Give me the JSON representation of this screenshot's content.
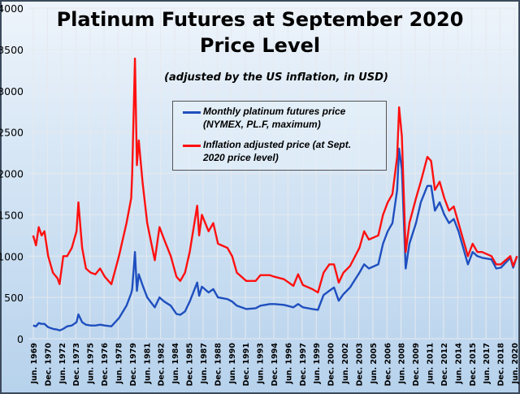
{
  "chart_data": {
    "type": "line",
    "title": "Platinum Futures at September 2020 Price Level",
    "subtitle": "(adjusted by the US inflation, in USD)",
    "xlabel": "",
    "ylabel": "",
    "ylim": [
      0,
      4000
    ],
    "yticks": [
      "0",
      "500",
      "1000",
      "1500",
      "2000",
      "2500",
      "3000",
      "3500",
      "4000"
    ],
    "xticks": [
      "Jun. 1969",
      "Dec. 1970",
      "Jun. 1972",
      "Dec. 1973",
      "Jun. 1975",
      "Dec. 1976",
      "Jun. 1978",
      "Dec. 1979",
      "Jun. 1981",
      "Dec. 1982",
      "Jun. 1984",
      "Dec. 1985",
      "Jun. 1987",
      "Dec. 1988",
      "Jun. 1990",
      "Dec. 1991",
      "Jun. 1993",
      "Dec. 1994",
      "Jun. 1996",
      "Dec. 1997",
      "Jun. 1999",
      "Dec. 2000",
      "Jun. 2002",
      "Dec. 2003",
      "Jun. 2005",
      "Dec. 2006",
      "Jun. 2008",
      "Dec. 2009",
      "Jun. 2011",
      "Dec. 2012",
      "Jun. 2014",
      "Dec. 2015",
      "Jun. 2017",
      "Dec. 2018",
      "Jun. 2020"
    ],
    "xlim": [
      1969.42,
      2020.42
    ],
    "grid": true,
    "legend_position": "top-center",
    "x": [
      1969.4,
      1969.7,
      1970.0,
      1970.3,
      1970.6,
      1971.0,
      1971.5,
      1972.0,
      1972.2,
      1972.6,
      1973.0,
      1973.5,
      1974.0,
      1974.2,
      1974.6,
      1975.0,
      1975.5,
      1976.0,
      1976.5,
      1977.0,
      1977.7,
      1978.5,
      1979.3,
      1979.8,
      1979.9,
      1980.2,
      1980.4,
      1980.6,
      1981.0,
      1981.5,
      1982.3,
      1982.8,
      1983.3,
      1984.0,
      1984.6,
      1985.0,
      1985.5,
      1986.0,
      1986.8,
      1987.0,
      1987.3,
      1988.0,
      1988.5,
      1989.0,
      1990.0,
      1990.5,
      1991.0,
      1992.0,
      1993.0,
      1993.5,
      1994.5,
      1995.0,
      1996.0,
      1997.0,
      1997.5,
      1998.0,
      1999.0,
      1999.6,
      2000.2,
      2000.8,
      2001.3,
      2001.8,
      2002.3,
      2003.0,
      2004.0,
      2004.5,
      2005.0,
      2006.0,
      2006.5,
      2007.0,
      2007.5,
      2008.0,
      2008.2,
      2008.5,
      2008.9,
      2009.3,
      2010.0,
      2010.5,
      2011.2,
      2011.6,
      2012.0,
      2012.5,
      2013.0,
      2013.5,
      2014.0,
      2014.5,
      2015.0,
      2015.5,
      2016.0,
      2016.5,
      2017.0,
      2018.0,
      2018.5,
      2019.0,
      2019.5,
      2020.0,
      2020.3,
      2020.7
    ],
    "series": [
      {
        "name": "Monthly platinum  futures price (NYMEX, PL.F, maximum)",
        "color": "#1f4fbf",
        "values": [
          160,
          150,
          190,
          180,
          180,
          140,
          120,
          110,
          100,
          120,
          150,
          160,
          200,
          295,
          200,
          170,
          160,
          160,
          170,
          160,
          150,
          250,
          400,
          550,
          600,
          1050,
          580,
          780,
          650,
          500,
          380,
          500,
          450,
          400,
          300,
          290,
          330,
          450,
          680,
          520,
          630,
          560,
          600,
          500,
          480,
          450,
          400,
          360,
          370,
          400,
          420,
          420,
          410,
          380,
          420,
          380,
          360,
          350,
          530,
          580,
          620,
          460,
          540,
          620,
          800,
          900,
          850,
          900,
          1150,
          1300,
          1400,
          1800,
          2300,
          2050,
          850,
          1150,
          1400,
          1650,
          1850,
          1850,
          1550,
          1650,
          1500,
          1400,
          1450,
          1300,
          1100,
          900,
          1050,
          1000,
          980,
          960,
          850,
          860,
          920,
          980,
          860,
          1000
        ]
      },
      {
        "name": "Inflation adjusted price (at Sept. 2020 price level)",
        "color": "#ff1010",
        "values": [
          1250,
          1130,
          1350,
          1250,
          1300,
          1000,
          800,
          730,
          660,
          1000,
          1000,
          1100,
          1300,
          1650,
          1100,
          850,
          800,
          780,
          850,
          750,
          660,
          1000,
          1400,
          1700,
          2000,
          3390,
          2100,
          2400,
          1900,
          1400,
          950,
          1350,
          1200,
          1000,
          750,
          700,
          800,
          1050,
          1610,
          1250,
          1500,
          1300,
          1400,
          1150,
          1100,
          1000,
          800,
          700,
          700,
          770,
          770,
          750,
          720,
          640,
          780,
          650,
          600,
          560,
          800,
          900,
          900,
          680,
          800,
          880,
          1100,
          1300,
          1200,
          1250,
          1500,
          1650,
          1750,
          2200,
          2800,
          2450,
          1050,
          1400,
          1700,
          1900,
          2200,
          2150,
          1800,
          1900,
          1700,
          1550,
          1600,
          1400,
          1200,
          1000,
          1150,
          1050,
          1050,
          1000,
          900,
          900,
          950,
          1000,
          880,
          1000
        ]
      }
    ]
  },
  "legend": {
    "items": [
      {
        "line1": "Monthly platinum  futures price",
        "line2": "(NYMEX, PL.F, maximum)"
      },
      {
        "line1": "Inflation adjusted price (at Sept.",
        "line2": "2020 price level)"
      }
    ]
  },
  "colors": {
    "background_top": "#eef4fb",
    "background_bottom": "#b7d2ec",
    "frame": "#3b4a5c"
  }
}
